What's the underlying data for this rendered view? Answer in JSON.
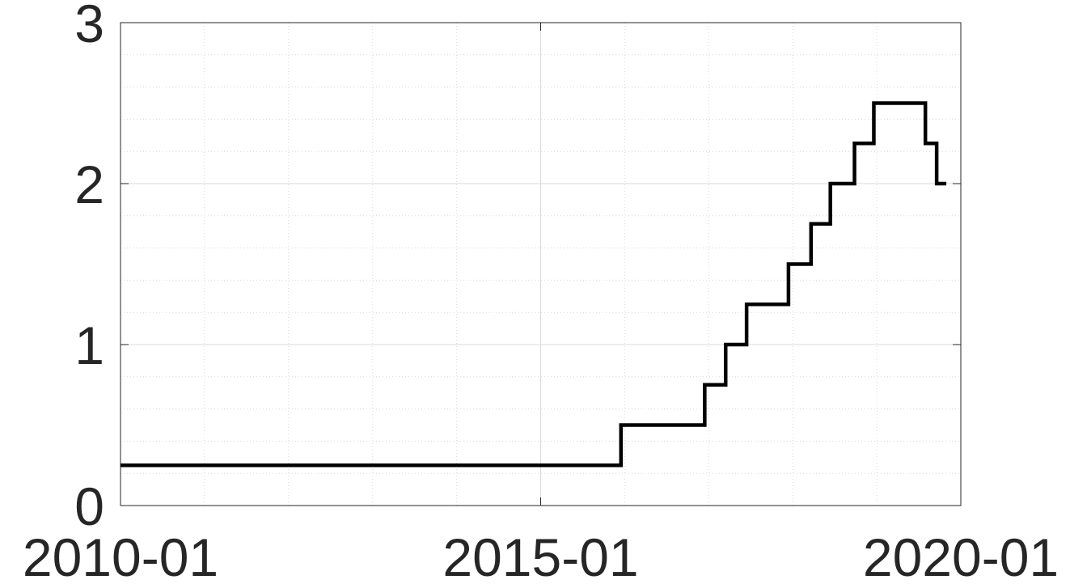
{
  "chart_data": {
    "type": "line",
    "title": "",
    "xlabel": "",
    "ylabel": "",
    "x_ticks": [
      "2010-01",
      "2015-01",
      "2020-01"
    ],
    "y_ticks": [
      "0",
      "1",
      "2",
      "3"
    ],
    "xlim": [
      "2010-01-01",
      "2020-01-01"
    ],
    "ylim": [
      0,
      3
    ],
    "grid": true,
    "minor_grid": true,
    "line_style": "step",
    "colors": {
      "line": "#000000",
      "grid": "#d9d9d9",
      "axis": "#262626"
    },
    "series": [
      {
        "x": [
          "2010-01-01",
          "2015-12-16",
          "2016-12-14",
          "2017-03-15",
          "2017-06-14",
          "2017-12-13",
          "2018-03-21",
          "2018-06-13",
          "2018-09-26",
          "2018-12-19",
          "2019-07-31",
          "2019-09-18",
          "2019-10-30"
        ],
        "values": [
          0.25,
          0.5,
          0.75,
          1.0,
          1.25,
          1.5,
          1.75,
          2.0,
          2.25,
          2.5,
          2.25,
          2.0,
          2.0
        ]
      }
    ]
  }
}
